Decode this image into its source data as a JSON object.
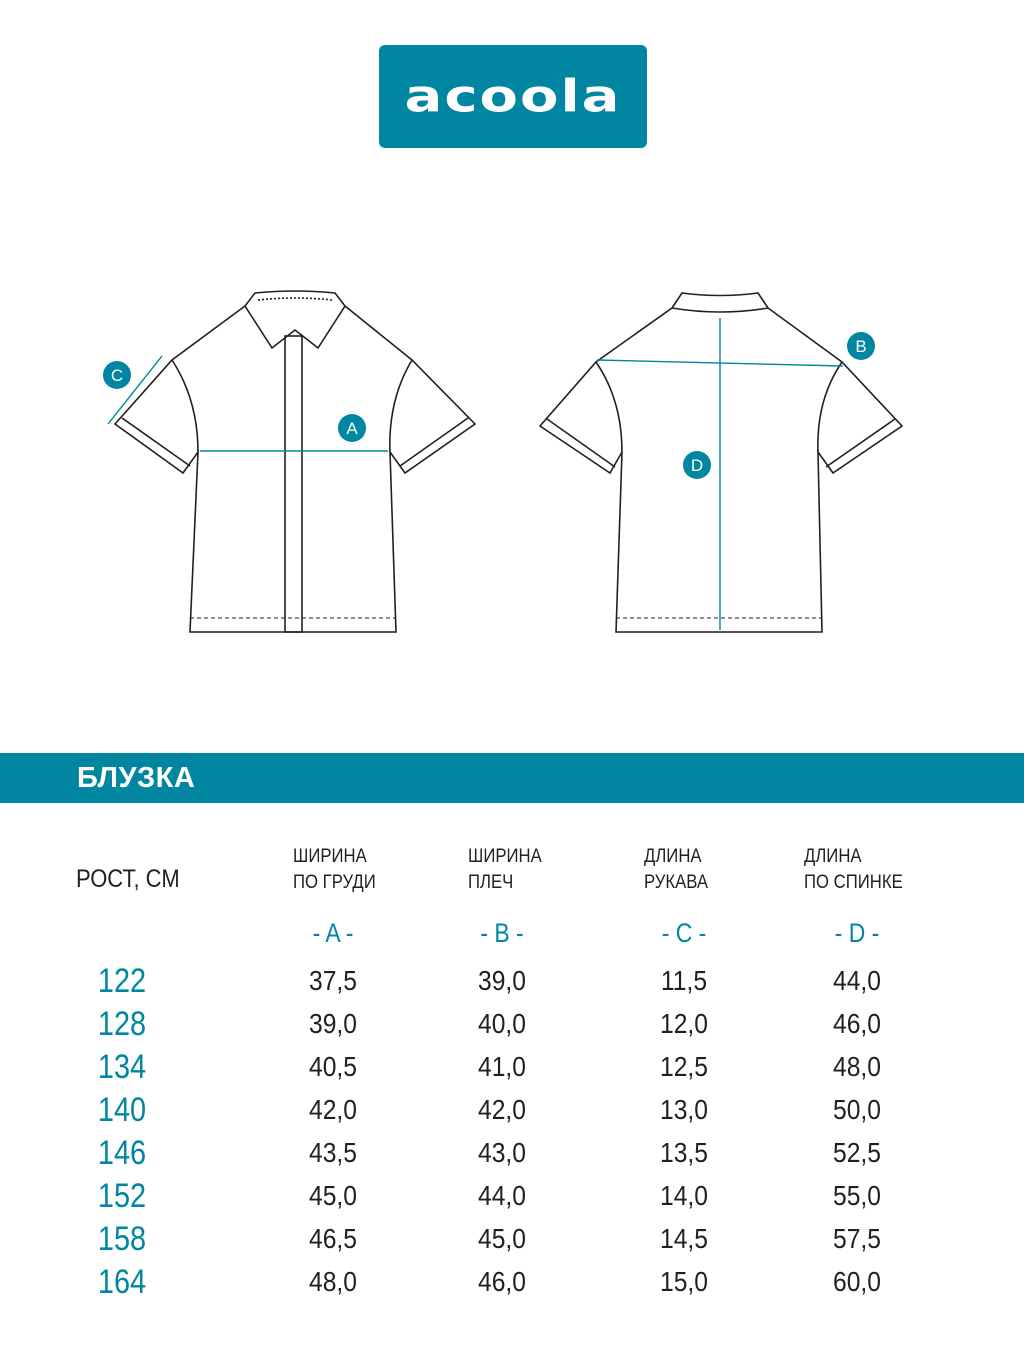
{
  "logo": {
    "text": "acoola",
    "color": "#0086a0"
  },
  "diagram": {
    "markers": {
      "a": "A",
      "b": "B",
      "c": "C",
      "d": "D"
    },
    "accent_color": "#0086a0"
  },
  "banner": {
    "title": "БЛУЗКА"
  },
  "table": {
    "height_header": "РОСТ, СМ",
    "columns": [
      {
        "line1": "ШИРИНА",
        "line2": "ПО ГРУДИ",
        "letter": "- A -"
      },
      {
        "line1": "ШИРИНА",
        "line2": "ПЛЕЧ",
        "letter": "- B -"
      },
      {
        "line1": "ДЛИНА",
        "line2": "РУКАВА",
        "letter": "- C -"
      },
      {
        "line1": "ДЛИНА",
        "line2": "ПО СПИНКЕ",
        "letter": "- D -"
      }
    ],
    "rows": [
      {
        "height": "122",
        "values": [
          "37,5",
          "39,0",
          "11,5",
          "44,0"
        ]
      },
      {
        "height": "128",
        "values": [
          "39,0",
          "40,0",
          "12,0",
          "46,0"
        ]
      },
      {
        "height": "134",
        "values": [
          "40,5",
          "41,0",
          "12,5",
          "48,0"
        ]
      },
      {
        "height": "140",
        "values": [
          "42,0",
          "42,0",
          "13,0",
          "50,0"
        ]
      },
      {
        "height": "146",
        "values": [
          "43,5",
          "43,0",
          "13,5",
          "52,5"
        ]
      },
      {
        "height": "152",
        "values": [
          "45,0",
          "44,0",
          "14,0",
          "55,0"
        ]
      },
      {
        "height": "158",
        "values": [
          "46,5",
          "45,0",
          "14,5",
          "57,5"
        ]
      },
      {
        "height": "164",
        "values": [
          "48,0",
          "46,0",
          "15,0",
          "60,0"
        ]
      }
    ]
  }
}
